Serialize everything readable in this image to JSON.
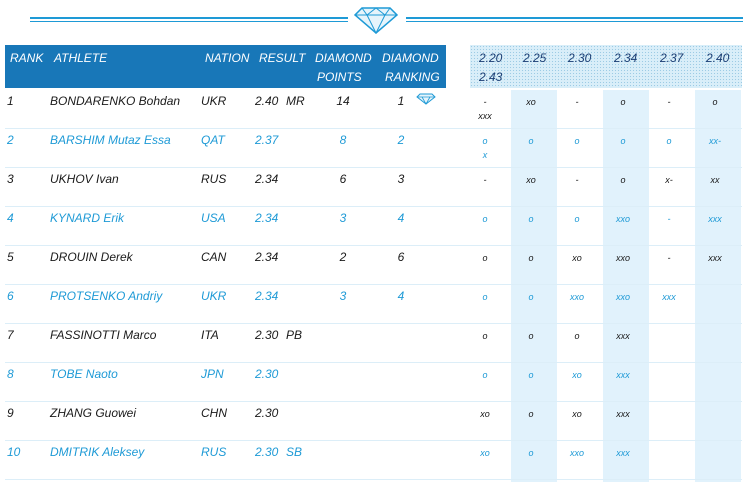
{
  "header": {
    "rank": "RANK",
    "athlete": "ATHLETE",
    "nation": "NATION",
    "result": "RESULT",
    "dp1": "DIAMOND",
    "dp2": "POINTS",
    "dr1": "DIAMOND",
    "dr2": "RANKING",
    "heights": [
      "2.20",
      "2.25",
      "2.30",
      "2.34",
      "2.37",
      "2.40"
    ],
    "height_extra": "2.43"
  },
  "colors": {
    "accent": "#1e9ad6",
    "header_bg": "#1877b8",
    "shade": "#e1f2fc"
  },
  "rows": [
    {
      "rank": "1",
      "athlete": "BONDARENKO Bohdan",
      "nation": "UKR",
      "result": "2.40",
      "note": "MR",
      "points": "14",
      "ranking": "1",
      "diamond": true,
      "h": [
        [
          "-",
          "xxx"
        ],
        [
          "xo",
          ""
        ],
        [
          "-",
          ""
        ],
        [
          "o",
          ""
        ],
        [
          "-",
          ""
        ],
        [
          "o",
          ""
        ]
      ]
    },
    {
      "rank": "2",
      "athlete": "BARSHIM Mutaz Essa",
      "nation": "QAT",
      "result": "2.37",
      "note": "",
      "points": "8",
      "ranking": "2",
      "diamond": false,
      "h": [
        [
          "o",
          "x"
        ],
        [
          "o",
          ""
        ],
        [
          "o",
          ""
        ],
        [
          "o",
          ""
        ],
        [
          "o",
          ""
        ],
        [
          "xx-",
          ""
        ]
      ]
    },
    {
      "rank": "3",
      "athlete": "UKHOV Ivan",
      "nation": "RUS",
      "result": "2.34",
      "note": "",
      "points": "6",
      "ranking": "3",
      "diamond": false,
      "h": [
        [
          "-",
          ""
        ],
        [
          "xo",
          ""
        ],
        [
          "-",
          ""
        ],
        [
          "o",
          ""
        ],
        [
          "x-",
          ""
        ],
        [
          "xx",
          ""
        ]
      ]
    },
    {
      "rank": "4",
      "athlete": "KYNARD Erik",
      "nation": "USA",
      "result": "2.34",
      "note": "",
      "points": "3",
      "ranking": "4",
      "diamond": false,
      "h": [
        [
          "o",
          ""
        ],
        [
          "o",
          ""
        ],
        [
          "o",
          ""
        ],
        [
          "xxo",
          ""
        ],
        [
          "-",
          ""
        ],
        [
          "xxx",
          ""
        ]
      ]
    },
    {
      "rank": "5",
      "athlete": "DROUIN Derek",
      "nation": "CAN",
      "result": "2.34",
      "note": "",
      "points": "2",
      "ranking": "6",
      "diamond": false,
      "h": [
        [
          "o",
          ""
        ],
        [
          "o",
          ""
        ],
        [
          "xo",
          ""
        ],
        [
          "xxo",
          ""
        ],
        [
          "-",
          ""
        ],
        [
          "xxx",
          ""
        ]
      ]
    },
    {
      "rank": "6",
      "athlete": "PROTSENKO Andriy",
      "nation": "UKR",
      "result": "2.34",
      "note": "",
      "points": "3",
      "ranking": "4",
      "diamond": false,
      "h": [
        [
          "o",
          ""
        ],
        [
          "o",
          ""
        ],
        [
          "xxo",
          ""
        ],
        [
          "xxo",
          ""
        ],
        [
          "xxx",
          ""
        ],
        [
          "",
          ""
        ]
      ]
    },
    {
      "rank": "7",
      "athlete": "FASSINOTTI Marco",
      "nation": "ITA",
      "result": "2.30",
      "note": "PB",
      "points": "",
      "ranking": "",
      "diamond": false,
      "h": [
        [
          "o",
          ""
        ],
        [
          "o",
          ""
        ],
        [
          "o",
          ""
        ],
        [
          "xxx",
          ""
        ],
        [
          "",
          ""
        ],
        [
          "",
          ""
        ]
      ]
    },
    {
      "rank": "8",
      "athlete": "TOBE Naoto",
      "nation": "JPN",
      "result": "2.30",
      "note": "",
      "points": "",
      "ranking": "",
      "diamond": false,
      "h": [
        [
          "o",
          ""
        ],
        [
          "o",
          ""
        ],
        [
          "xo",
          ""
        ],
        [
          "xxx",
          ""
        ],
        [
          "",
          ""
        ],
        [
          "",
          ""
        ]
      ]
    },
    {
      "rank": "9",
      "athlete": "ZHANG Guowei",
      "nation": "CHN",
      "result": "2.30",
      "note": "",
      "points": "",
      "ranking": "",
      "diamond": false,
      "h": [
        [
          "xo",
          ""
        ],
        [
          "o",
          ""
        ],
        [
          "xo",
          ""
        ],
        [
          "xxx",
          ""
        ],
        [
          "",
          ""
        ],
        [
          "",
          ""
        ]
      ]
    },
    {
      "rank": "10",
      "athlete": "DMITRIK Aleksey",
      "nation": "RUS",
      "result": "2.30",
      "note": "SB",
      "points": "",
      "ranking": "",
      "diamond": false,
      "h": [
        [
          "xo",
          ""
        ],
        [
          "o",
          ""
        ],
        [
          "xxo",
          ""
        ],
        [
          "xxx",
          ""
        ],
        [
          "",
          ""
        ],
        [
          "",
          ""
        ]
      ]
    }
  ]
}
